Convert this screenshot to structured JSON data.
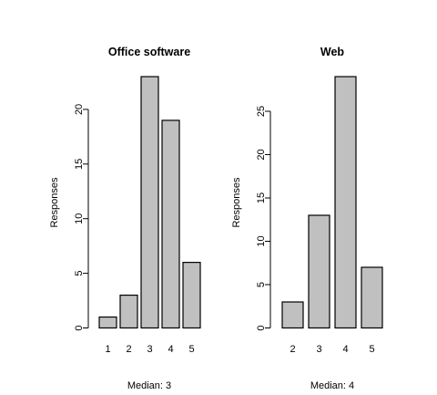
{
  "chart_data": [
    {
      "type": "bar",
      "title": "Office software",
      "ylabel": "Responses",
      "xlabel": "",
      "categories": [
        "1",
        "2",
        "3",
        "4",
        "5"
      ],
      "values": [
        1,
        3,
        23,
        19,
        6
      ],
      "yticks": [
        0,
        5,
        10,
        15,
        20
      ],
      "ylim": [
        0,
        23
      ],
      "note": "Median: 3",
      "bar_color": "#c0c0c0"
    },
    {
      "type": "bar",
      "title": "Web",
      "ylabel": "Responses",
      "xlabel": "",
      "categories": [
        "2",
        "3",
        "4",
        "5"
      ],
      "values": [
        3,
        13,
        29,
        7
      ],
      "yticks": [
        0,
        5,
        10,
        15,
        20,
        25
      ],
      "ylim": [
        0,
        29
      ],
      "note": "Median: 4",
      "bar_color": "#c0c0c0"
    }
  ]
}
